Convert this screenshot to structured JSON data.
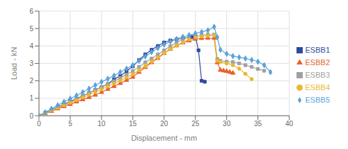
{
  "chart_data": {
    "type": "line",
    "title": "",
    "xlabel": "Displacement - mm",
    "ylabel": "Load - kN",
    "xlim": [
      0,
      40
    ],
    "ylim": [
      0,
      6
    ],
    "xticks": [
      0,
      5,
      10,
      15,
      20,
      25,
      30,
      35,
      40
    ],
    "yticks": [
      0,
      1,
      2,
      3,
      4,
      5,
      6
    ],
    "grid": true,
    "legend": "right",
    "series": [
      {
        "name": "ESBB1",
        "color": "#2E4A9E",
        "marker": "square",
        "x": [
          0,
          1,
          2,
          3,
          4,
          5,
          6,
          7,
          8,
          9,
          10,
          11,
          12,
          13,
          14,
          15,
          16,
          17,
          18,
          19,
          20,
          21,
          22,
          23,
          24,
          24.5,
          25,
          25.5,
          26,
          26.5
        ],
        "values": [
          0,
          0.17,
          0.33,
          0.5,
          0.66,
          0.82,
          0.98,
          1.14,
          1.31,
          1.48,
          1.65,
          1.82,
          2.1,
          2.28,
          2.55,
          2.83,
          3.2,
          3.52,
          3.78,
          4.0,
          4.2,
          4.32,
          4.38,
          4.44,
          4.5,
          4.52,
          4.55,
          3.75,
          2.0,
          1.95
        ]
      },
      {
        "name": "ESBB2",
        "color": "#E8622A",
        "marker": "triangle",
        "x": [
          0,
          1,
          2,
          3,
          4,
          5,
          6,
          7,
          8,
          9,
          10,
          11,
          12,
          13,
          14,
          15,
          16,
          17,
          18,
          19,
          20,
          21,
          22,
          23,
          24,
          25,
          26,
          27,
          28,
          28.5,
          29,
          29.5,
          30,
          30.5,
          31
        ],
        "values": [
          0,
          0.13,
          0.26,
          0.4,
          0.53,
          0.66,
          0.8,
          0.93,
          1.06,
          1.19,
          1.35,
          1.52,
          1.69,
          1.86,
          2.04,
          2.22,
          2.5,
          2.78,
          3.05,
          3.3,
          3.58,
          3.82,
          4.02,
          4.18,
          4.3,
          4.4,
          4.44,
          4.45,
          4.45,
          3.05,
          2.62,
          2.58,
          2.55,
          2.5,
          2.45
        ]
      },
      {
        "name": "ESBB3",
        "color": "#A0A0A0",
        "marker": "square",
        "x": [
          0,
          1,
          2,
          3,
          4,
          5,
          6,
          7,
          8,
          9,
          10,
          11,
          12,
          13,
          14,
          15,
          16,
          17,
          18,
          19,
          20,
          21,
          22,
          23,
          24,
          25,
          26,
          27,
          28,
          28.5,
          29,
          30,
          31,
          32,
          33,
          34,
          35,
          36
        ],
        "values": [
          0,
          0.16,
          0.32,
          0.48,
          0.64,
          0.8,
          0.96,
          1.13,
          1.3,
          1.47,
          1.64,
          1.8,
          1.98,
          2.17,
          2.36,
          2.56,
          2.8,
          3.06,
          3.28,
          3.52,
          3.75,
          3.98,
          4.2,
          4.38,
          4.52,
          4.6,
          4.62,
          4.65,
          4.65,
          3.25,
          3.15,
          3.1,
          3.08,
          3.0,
          2.9,
          2.8,
          2.68,
          2.58
        ]
      },
      {
        "name": "ESBB4",
        "color": "#E8B830",
        "marker": "circle",
        "x": [
          0,
          1,
          2,
          3,
          4,
          5,
          6,
          7,
          8,
          9,
          10,
          11,
          12,
          13,
          14,
          15,
          16,
          17,
          18,
          19,
          20,
          21,
          22,
          23,
          24,
          25,
          26,
          27,
          28,
          28.5,
          29,
          30,
          31,
          32,
          33,
          34
        ],
        "values": [
          0,
          0.15,
          0.3,
          0.45,
          0.6,
          0.75,
          0.9,
          1.05,
          1.2,
          1.36,
          1.52,
          1.68,
          1.85,
          2.02,
          2.2,
          2.38,
          2.6,
          2.85,
          3.1,
          3.35,
          3.6,
          3.82,
          4.02,
          4.2,
          4.38,
          4.5,
          4.55,
          4.58,
          4.6,
          3.15,
          3.08,
          3.0,
          2.9,
          2.7,
          2.4,
          2.1
        ]
      },
      {
        "name": "ESBB5",
        "color": "#5BA3D9",
        "marker": "diamond",
        "x": [
          0,
          1,
          2,
          3,
          4,
          5,
          6,
          7,
          8,
          9,
          10,
          11,
          12,
          13,
          14,
          15,
          16,
          17,
          18,
          19,
          20,
          21,
          22,
          23,
          24,
          25,
          26,
          27,
          28,
          28.5,
          29,
          30,
          31,
          32,
          33,
          34,
          35,
          36,
          37
        ],
        "values": [
          0,
          0.2,
          0.4,
          0.6,
          0.8,
          0.98,
          1.16,
          1.35,
          1.55,
          1.75,
          1.94,
          2.12,
          2.3,
          2.5,
          2.7,
          2.9,
          3.15,
          3.4,
          3.65,
          3.88,
          4.08,
          4.25,
          4.4,
          4.52,
          4.62,
          4.72,
          4.8,
          4.9,
          5.1,
          4.5,
          3.78,
          3.55,
          3.42,
          3.35,
          3.28,
          3.2,
          3.1,
          2.9,
          2.5
        ]
      }
    ]
  }
}
